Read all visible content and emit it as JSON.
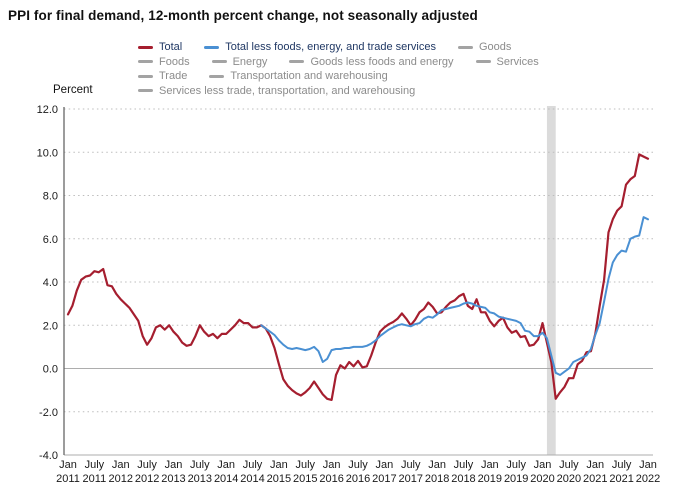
{
  "title": "PPI for final demand, 12-month percent change, not seasonally adjusted",
  "y_axis_label": "Percent",
  "colors": {
    "total_line": "#A51E2F",
    "core_line": "#4A90D3",
    "legend_active_text": "#203864",
    "legend_inactive_text": "#8C8C8C",
    "legend_inactive_swatch": "#A3A3A3",
    "grid_dotted": "#BDBDBD",
    "zero_line": "#ADADAD",
    "bottom_axis": "#ADADAD",
    "left_axis": "#666666",
    "tick_text": "#1A1A1A",
    "recession_band": "#DBDBDB"
  },
  "legend": {
    "rows": [
      [
        {
          "label": "Total",
          "swatch": "#A51E2F",
          "text_color": "#203864",
          "active": true
        },
        {
          "label": "Total less foods, energy, and trade services",
          "swatch": "#4A90D3",
          "text_color": "#203864",
          "active": true
        },
        {
          "label": "Goods",
          "swatch": "#A3A3A3",
          "text_color": "#8C8C8C",
          "active": false
        }
      ],
      [
        {
          "label": "Foods",
          "swatch": "#A3A3A3",
          "text_color": "#8C8C8C",
          "active": false
        },
        {
          "label": "Energy",
          "swatch": "#A3A3A3",
          "text_color": "#8C8C8C",
          "active": false
        },
        {
          "label": "Goods less foods and energy",
          "swatch": "#A3A3A3",
          "text_color": "#8C8C8C",
          "active": false
        },
        {
          "label": "Services",
          "swatch": "#A3A3A3",
          "text_color": "#8C8C8C",
          "active": false
        }
      ],
      [
        {
          "label": "Trade",
          "swatch": "#A3A3A3",
          "text_color": "#8C8C8C",
          "active": false
        },
        {
          "label": "Transportation and warehousing",
          "swatch": "#A3A3A3",
          "text_color": "#8C8C8C",
          "active": false
        }
      ],
      [
        {
          "label": "Services less trade, transportation, and warehousing",
          "swatch": "#A3A3A3",
          "text_color": "#8C8C8C",
          "active": false
        }
      ]
    ]
  },
  "chart_data": {
    "type": "line",
    "title": "PPI for final demand, 12-month percent change, not seasonally adjusted",
    "xlabel": "",
    "ylabel": "Percent",
    "ylim": [
      -4.0,
      12.0
    ],
    "ytick_interval": 2.0,
    "ytick_values": [
      12.0,
      10.0,
      8.0,
      6.0,
      4.0,
      2.0,
      0.0,
      -2.0,
      -4.0
    ],
    "ytick_labels": [
      "12.0",
      "10.0",
      "8.0",
      "6.0",
      "4.0",
      "2.0",
      "0.0",
      "-2.0",
      "-4.0"
    ],
    "grid": "horizontal-dotted",
    "x_frequency": "monthly",
    "x_start": "Jan 2011",
    "x_end": "Jan 2022",
    "xticks": [
      {
        "month": "Jan",
        "year": "2011",
        "i": 0
      },
      {
        "month": "July",
        "year": "2011",
        "i": 6
      },
      {
        "month": "Jan",
        "year": "2012",
        "i": 12
      },
      {
        "month": "July",
        "year": "2012",
        "i": 18
      },
      {
        "month": "Jan",
        "year": "2013",
        "i": 24
      },
      {
        "month": "July",
        "year": "2013",
        "i": 30
      },
      {
        "month": "Jan",
        "year": "2014",
        "i": 36
      },
      {
        "month": "July",
        "year": "2014",
        "i": 42
      },
      {
        "month": "Jan",
        "year": "2015",
        "i": 48
      },
      {
        "month": "July",
        "year": "2015",
        "i": 54
      },
      {
        "month": "Jan",
        "year": "2016",
        "i": 60
      },
      {
        "month": "July",
        "year": "2016",
        "i": 66
      },
      {
        "month": "Jan",
        "year": "2017",
        "i": 72
      },
      {
        "month": "July",
        "year": "2017",
        "i": 78
      },
      {
        "month": "Jan",
        "year": "2018",
        "i": 84
      },
      {
        "month": "July",
        "year": "2018",
        "i": 90
      },
      {
        "month": "Jan",
        "year": "2019",
        "i": 96
      },
      {
        "month": "July",
        "year": "2019",
        "i": 102
      },
      {
        "month": "Jan",
        "year": "2020",
        "i": 108
      },
      {
        "month": "July",
        "year": "2020",
        "i": 114
      },
      {
        "month": "Jan",
        "year": "2021",
        "i": 120
      },
      {
        "month": "July",
        "year": "2021",
        "i": 126
      },
      {
        "month": "Jan",
        "year": "2022",
        "i": 132
      }
    ],
    "recession_band": {
      "label": "Feb 2020 - Apr 2020 recession",
      "start_index": 109,
      "end_index": 111
    },
    "series": [
      {
        "name": "Total",
        "color": "#A51E2F",
        "stroke_width": 2.2,
        "values": [
          2.5,
          2.9,
          3.6,
          4.1,
          4.25,
          4.3,
          4.5,
          4.45,
          4.6,
          3.85,
          3.8,
          3.45,
          3.2,
          3.0,
          2.8,
          2.5,
          2.2,
          1.5,
          1.1,
          1.4,
          1.9,
          2.0,
          1.8,
          2.0,
          1.7,
          1.5,
          1.2,
          1.05,
          1.1,
          1.5,
          2.0,
          1.7,
          1.5,
          1.6,
          1.4,
          1.6,
          1.6,
          1.8,
          2.0,
          2.25,
          2.1,
          2.1,
          1.9,
          1.9,
          2.0,
          1.85,
          1.5,
          0.95,
          0.2,
          -0.5,
          -0.8,
          -1.0,
          -1.15,
          -1.25,
          -1.1,
          -0.9,
          -0.6,
          -0.9,
          -1.2,
          -1.4,
          -1.45,
          -0.3,
          0.15,
          0.0,
          0.3,
          0.1,
          0.35,
          0.05,
          0.1,
          0.6,
          1.2,
          1.7,
          1.9,
          2.05,
          2.15,
          2.3,
          2.55,
          2.3,
          2.0,
          2.25,
          2.6,
          2.75,
          3.05,
          2.85,
          2.55,
          2.6,
          2.85,
          3.05,
          3.15,
          3.35,
          3.45,
          2.9,
          2.75,
          3.2,
          2.6,
          2.6,
          2.2,
          1.95,
          2.2,
          2.35,
          1.9,
          1.65,
          1.75,
          1.45,
          1.5,
          1.05,
          1.1,
          1.35,
          2.1,
          1.2,
          0.3,
          -1.4,
          -1.1,
          -0.85,
          -0.45,
          -0.45,
          0.2,
          0.35,
          0.75,
          0.8,
          1.6,
          2.9,
          4.1,
          6.3,
          6.9,
          7.3,
          7.5,
          8.5,
          8.75,
          8.9,
          9.9,
          9.8,
          9.7
        ]
      },
      {
        "name": "Total less foods, energy, and trade services",
        "color": "#4A90D3",
        "stroke_width": 2.0,
        "values": [
          null,
          null,
          null,
          null,
          null,
          null,
          null,
          null,
          null,
          null,
          null,
          null,
          null,
          null,
          null,
          null,
          null,
          null,
          null,
          null,
          null,
          null,
          null,
          null,
          null,
          null,
          null,
          null,
          null,
          null,
          null,
          null,
          null,
          null,
          null,
          null,
          null,
          null,
          null,
          null,
          null,
          null,
          null,
          null,
          2.0,
          1.85,
          1.7,
          1.55,
          1.3,
          1.1,
          0.95,
          0.9,
          0.95,
          0.9,
          0.85,
          0.9,
          1.0,
          0.8,
          0.3,
          0.45,
          0.85,
          0.9,
          0.9,
          0.95,
          0.95,
          1.0,
          1.0,
          1.0,
          1.05,
          1.15,
          1.3,
          1.5,
          1.65,
          1.8,
          1.9,
          2.0,
          2.05,
          2.0,
          1.95,
          2.05,
          2.1,
          2.3,
          2.4,
          2.35,
          2.5,
          2.7,
          2.75,
          2.8,
          2.85,
          2.9,
          3.0,
          3.05,
          3.0,
          2.9,
          2.85,
          2.8,
          2.6,
          2.55,
          2.4,
          2.35,
          2.3,
          2.25,
          2.2,
          2.1,
          1.75,
          1.7,
          1.5,
          1.5,
          1.65,
          1.4,
          0.6,
          -0.2,
          -0.3,
          -0.15,
          0.0,
          0.3,
          0.4,
          0.5,
          0.6,
          0.9,
          1.55,
          2.1,
          3.1,
          4.15,
          4.9,
          5.25,
          5.45,
          5.4,
          6.0,
          6.1,
          6.15,
          7.0,
          6.9
        ]
      }
    ],
    "hidden_series": [
      "Goods",
      "Foods",
      "Energy",
      "Goods less foods and energy",
      "Services",
      "Trade",
      "Transportation and warehousing",
      "Services less trade, transportation, and warehousing"
    ]
  }
}
